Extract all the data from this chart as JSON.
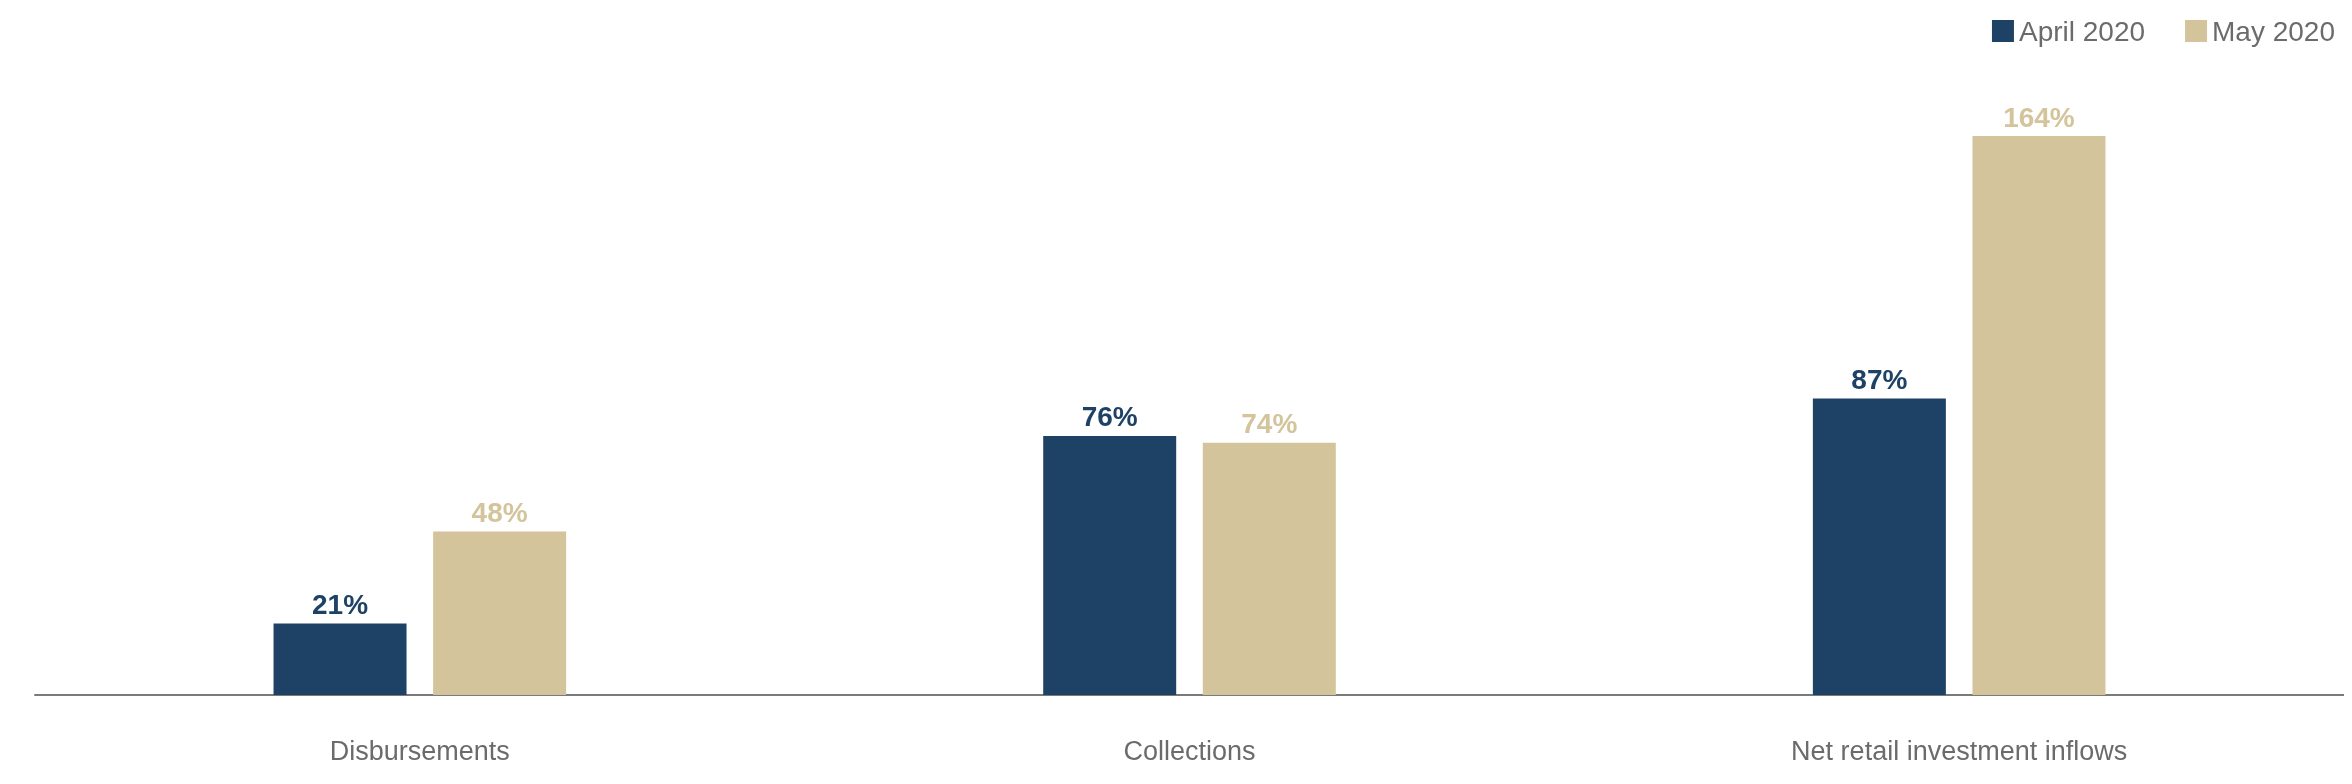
{
  "chart_data": {
    "type": "bar",
    "categories": [
      "Disbursements",
      "Collections",
      "Net retail investment inflows"
    ],
    "series": [
      {
        "name": "April 2020",
        "color": "#1e4266",
        "values": [
          21,
          76,
          87
        ],
        "value_labels": [
          "21%",
          "76%",
          "87%"
        ]
      },
      {
        "name": "May 2020",
        "color": "#d3c49b",
        "values": [
          48,
          74,
          164
        ],
        "value_labels": [
          "48%",
          "74%",
          "164%"
        ]
      }
    ],
    "legend": "top right"
  }
}
